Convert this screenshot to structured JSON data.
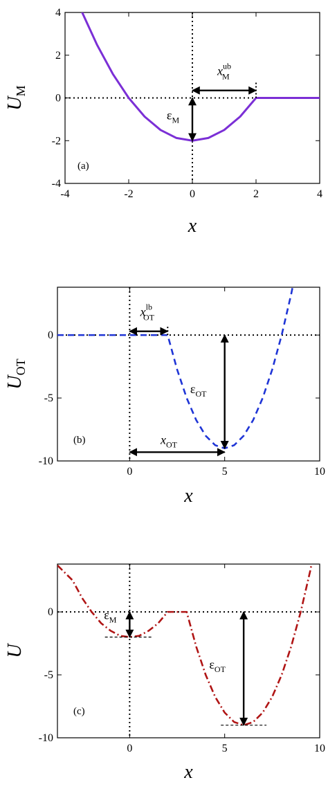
{
  "chart_data": [
    {
      "type": "line",
      "panel_label": "(a)",
      "xlabel": "x",
      "ylabel_main": "U",
      "ylabel_sub": "M",
      "xlim": [
        -4,
        4
      ],
      "ylim": [
        -4,
        4
      ],
      "xticks": [
        -4,
        -2,
        0,
        2,
        4
      ],
      "yticks": [
        -4,
        -2,
        0,
        2,
        4
      ],
      "xtick_labels": [
        "-4",
        "-2",
        "0",
        "2",
        "4"
      ],
      "ytick_labels": [
        "-4",
        "-2",
        "0",
        "2",
        "4"
      ],
      "series": [
        {
          "style": "solid",
          "color": "#7b2fd6",
          "x": [
            -3.5,
            -3,
            -2.5,
            -2,
            -1.5,
            -1,
            -0.5,
            0,
            0.5,
            1,
            1.5,
            2,
            2.5,
            3,
            3.5,
            4
          ],
          "y": [
            4.125,
            2.5,
            1.125,
            0,
            -0.875,
            -1.5,
            -1.875,
            -2,
            -1.875,
            -1.5,
            -0.875,
            0,
            0,
            0,
            0,
            0
          ]
        }
      ],
      "annotations": [
        {
          "main": "x",
          "sup": "ub",
          "sub": "M",
          "italic": true,
          "arrow_from": [
            0,
            0.35
          ],
          "arrow_to": [
            2,
            0.35
          ],
          "double": true
        },
        {
          "main": "ε",
          "sub": "M",
          "italic": false,
          "arrow_from": [
            0,
            0
          ],
          "arrow_to": [
            0,
            -2
          ],
          "double": true
        }
      ]
    },
    {
      "type": "line",
      "panel_label": "(b)",
      "xlabel": "x",
      "ylabel_main": "U",
      "ylabel_sub": "OT",
      "xlim": [
        -3.8,
        10
      ],
      "ylim": [
        -10,
        3.8
      ],
      "xticks": [
        0,
        5,
        10
      ],
      "yticks": [
        -10,
        -5,
        0
      ],
      "xtick_labels": [
        "0",
        "5",
        "10"
      ],
      "ytick_labels": [
        "-10",
        "-5",
        "0"
      ],
      "series": [
        {
          "style": "dashed",
          "color": "#1f35d6",
          "x": [
            -3.8,
            -2,
            0,
            1,
            2,
            2.5,
            3,
            3.5,
            4,
            4.5,
            5,
            5.5,
            6,
            6.5,
            7,
            7.5,
            8,
            8.5,
            9
          ],
          "y": [
            0,
            0,
            0,
            0,
            0,
            -2.75,
            -5,
            -6.75,
            -8,
            -8.75,
            -9,
            -8.75,
            -8,
            -6.75,
            -5,
            -2.75,
            0,
            3.25,
            7
          ]
        }
      ],
      "annotations": [
        {
          "main": "x",
          "sup": "lb",
          "sub": "OT",
          "italic": true,
          "arrow_from": [
            0,
            0.3
          ],
          "arrow_to": [
            2,
            0.3
          ],
          "double": true
        },
        {
          "main": "ε",
          "sub": "OT",
          "italic": false,
          "arrow_from": [
            5,
            0
          ],
          "arrow_to": [
            5,
            -9
          ],
          "double": true
        },
        {
          "main": "x",
          "sub": "OT",
          "italic": true,
          "arrow_from": [
            0,
            -9.3
          ],
          "arrow_to": [
            5,
            -9.3
          ],
          "double": true
        }
      ]
    },
    {
      "type": "line",
      "panel_label": "(c)",
      "xlabel": "x",
      "ylabel_main": "U",
      "ylabel_sub": "",
      "xlim": [
        -3.8,
        10
      ],
      "ylim": [
        -10,
        3.8
      ],
      "xticks": [
        0,
        5,
        10
      ],
      "yticks": [
        -10,
        -5,
        0
      ],
      "xtick_labels": [
        "0",
        "5",
        "10"
      ],
      "ytick_labels": [
        "-10",
        "-5",
        "0"
      ],
      "series": [
        {
          "style": "dashdot",
          "color": "#b01515",
          "x": [
            -3.8,
            -3,
            -2.5,
            -2,
            -1.5,
            -1,
            -0.5,
            0,
            0.5,
            1,
            1.5,
            2,
            2.5,
            3,
            3.5,
            4,
            4.5,
            5,
            5.5,
            6,
            6.5,
            7,
            7.5,
            8,
            8.5,
            9,
            9.5,
            10
          ],
          "y": [
            3.7,
            2.5,
            1.1,
            0,
            -0.9,
            -1.5,
            -1.9,
            -2,
            -1.9,
            -1.5,
            -0.9,
            0,
            0,
            0,
            -2.75,
            -5,
            -6.75,
            -8,
            -8.75,
            -9,
            -8.75,
            -8,
            -6.75,
            -5,
            -2.75,
            0,
            3.25,
            7
          ]
        }
      ],
      "annotations": [
        {
          "main": "ε",
          "sub": "M",
          "italic": false,
          "arrow_from": [
            0,
            0
          ],
          "arrow_to": [
            0,
            -2
          ],
          "double": true
        },
        {
          "main": "ε",
          "sub": "OT",
          "italic": false,
          "arrow_from": [
            6,
            0
          ],
          "arrow_to": [
            6,
            -9
          ],
          "double": true
        }
      ]
    }
  ]
}
